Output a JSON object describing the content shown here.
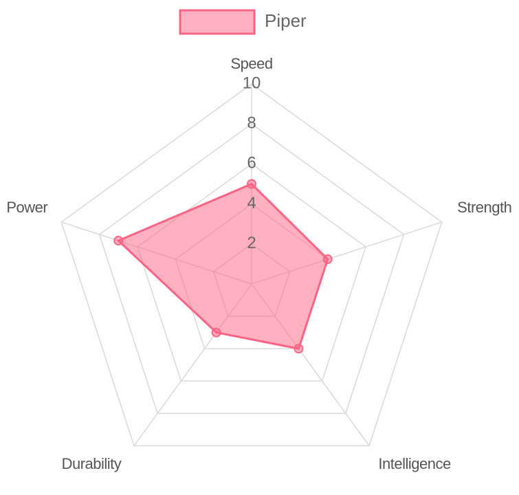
{
  "chart_data": {
    "type": "radar",
    "categories": [
      "Speed",
      "Strength",
      "Intelligence",
      "Durability",
      "Power"
    ],
    "series": [
      {
        "name": "Piper",
        "color": "#ff6384",
        "values": [
          5,
          4,
          4,
          3,
          7
        ]
      }
    ],
    "rlim": [
      0,
      10
    ],
    "rticks": [
      2,
      4,
      6,
      8,
      10
    ],
    "grid": true,
    "legend": "top"
  }
}
